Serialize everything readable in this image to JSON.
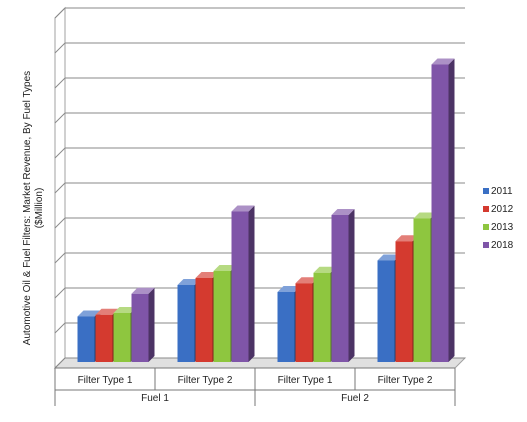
{
  "chart_data": {
    "type": "bar",
    "style": "3d-clustered-column",
    "title": "",
    "ylabel": "Automotive Oil & Fuel Filters: Market Revenue, By Fuel Types ($Million)",
    "xlabel": "",
    "ylim": [
      0,
      10
    ],
    "grid": true,
    "legend_position": "right",
    "groups": [
      {
        "label": "Fuel 1",
        "categories": [
          "Filter Type 1",
          "Filter Type 2"
        ]
      },
      {
        "label": "Fuel 2",
        "categories": [
          "Filter Type 1",
          "Filter Type 2"
        ]
      }
    ],
    "series": [
      {
        "name": "2011",
        "color": "#3a6fc4",
        "values": [
          1.3,
          2.2,
          2.0,
          2.9
        ]
      },
      {
        "name": "2012",
        "color": "#d43a2f",
        "values": [
          1.35,
          2.4,
          2.25,
          3.45
        ]
      },
      {
        "name": "2013",
        "color": "#8ec63f",
        "values": [
          1.4,
          2.6,
          2.55,
          4.1
        ]
      },
      {
        "name": "2018",
        "color": "#7f55a8",
        "values": [
          1.95,
          4.3,
          4.2,
          8.5
        ]
      }
    ]
  }
}
